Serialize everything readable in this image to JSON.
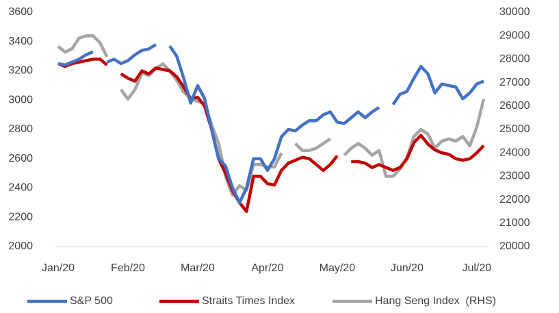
{
  "chart_data": {
    "type": "line",
    "categories": [
      "Jan/20",
      null,
      null,
      null,
      null,
      null,
      null,
      null,
      null,
      null,
      "Feb/20",
      null,
      null,
      null,
      null,
      null,
      null,
      null,
      null,
      null,
      "Mar/20",
      null,
      null,
      null,
      null,
      null,
      null,
      null,
      null,
      null,
      "Apr/20",
      null,
      null,
      null,
      null,
      null,
      null,
      null,
      null,
      null,
      "May/20",
      null,
      null,
      null,
      null,
      null,
      null,
      null,
      null,
      null,
      "Jun/20",
      null,
      null,
      null,
      null,
      null,
      null,
      null,
      null,
      null,
      "Jul/20",
      null
    ],
    "series": [
      {
        "name": "S&P 500",
        "color": "#4472c4",
        "values": [
          3250,
          3240,
          3260,
          3280,
          3310,
          3330,
          null,
          3260,
          3280,
          3250,
          3270,
          3310,
          3340,
          3350,
          3380,
          null,
          3370,
          3300,
          3150,
          2980,
          3100,
          3010,
          2800,
          2600,
          2550,
          2400,
          2300,
          2400,
          2600,
          2600,
          2520,
          2600,
          2750,
          2800,
          2790,
          2830,
          2860,
          2860,
          2900,
          2920,
          2850,
          2840,
          2880,
          2920,
          2880,
          2920,
          2950,
          null,
          2970,
          3040,
          3060,
          3150,
          3230,
          3180,
          3050,
          3110,
          3100,
          3090,
          3010,
          3050,
          3110,
          3130
        ]
      },
      {
        "name": "Straits Times Index",
        "color": "#c00000",
        "values": [
          3250,
          3230,
          3250,
          3260,
          3270,
          3280,
          3280,
          3240,
          null,
          3180,
          3150,
          3130,
          3200,
          3180,
          3220,
          3210,
          3200,
          3160,
          3090,
          3010,
          3020,
          2960,
          2800,
          2600,
          2500,
          2380,
          2300,
          2240,
          2480,
          2480,
          2430,
          2420,
          2520,
          2570,
          2590,
          2610,
          2600,
          2560,
          2520,
          2560,
          2620,
          null,
          2580,
          2580,
          2570,
          2540,
          2560,
          2540,
          2520,
          2540,
          2600,
          2710,
          2760,
          2700,
          2660,
          2640,
          2630,
          2600,
          2590,
          2600,
          2640,
          2690
        ]
      },
      {
        "name": "Hang Seng Index  (RHS)",
        "color": "#a5a5a5",
        "axis": "y2",
        "values": [
          28550,
          28300,
          28450,
          28900,
          29000,
          29000,
          28700,
          28100,
          null,
          26700,
          26300,
          26700,
          27400,
          27300,
          27600,
          27800,
          27500,
          27100,
          26600,
          26300,
          26200,
          26100,
          25200,
          24400,
          23000,
          22200,
          22600,
          22400,
          23500,
          23500,
          23400,
          23400,
          24000,
          null,
          24400,
          24100,
          24100,
          24200,
          24400,
          24600,
          null,
          23900,
          24200,
          24400,
          24200,
          23900,
          24100,
          23000,
          23000,
          23300,
          23800,
          24700,
          25000,
          24800,
          24200,
          24500,
          24600,
          24500,
          24700,
          24300,
          25100,
          26300
        ]
      }
    ],
    "ylim": [
      2000,
      3600
    ],
    "yticks": [
      2000,
      2200,
      2400,
      2600,
      2800,
      3000,
      3200,
      3400,
      3600
    ],
    "y2lim": [
      20000,
      30000
    ],
    "y2ticks": [
      20000,
      21000,
      22000,
      23000,
      24000,
      25000,
      26000,
      27000,
      28000,
      29000,
      30000
    ],
    "legend": "bottom"
  }
}
